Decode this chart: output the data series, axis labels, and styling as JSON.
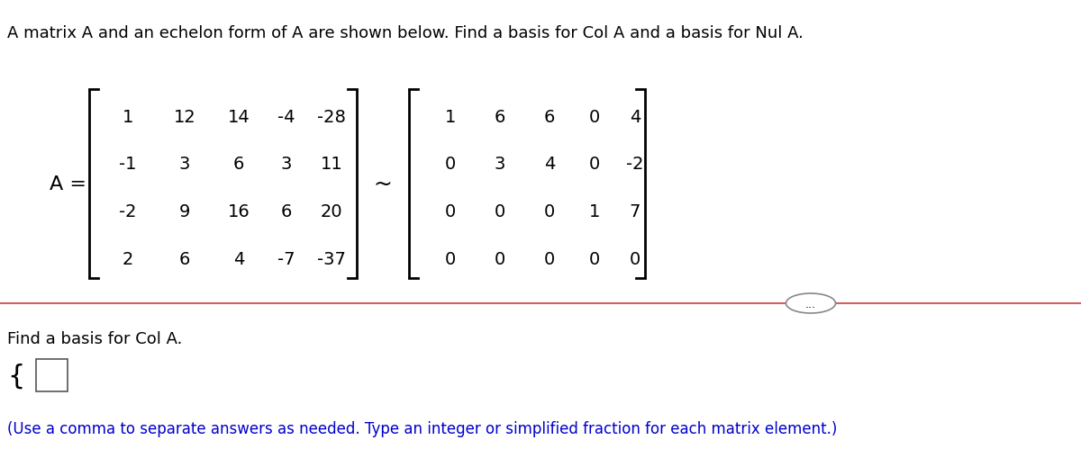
{
  "title": "A matrix A and an echelon form of A are shown below. Find a basis for Col A and a basis for Nul A.",
  "A_label": "A =",
  "tilde": "~",
  "matrix_A": [
    [
      "1",
      "12",
      "14",
      "-4",
      "-28"
    ],
    [
      "-1",
      "3",
      "6",
      "3",
      "11"
    ],
    [
      "-2",
      "9",
      "16",
      "6",
      "20"
    ],
    [
      "2",
      "6",
      "4",
      "-7",
      "-37"
    ]
  ],
  "matrix_E": [
    [
      "1",
      "6",
      "6",
      "0",
      "4"
    ],
    [
      "0",
      "3",
      "4",
      "0",
      "-2"
    ],
    [
      "0",
      "0",
      "0",
      "1",
      "7"
    ],
    [
      "0",
      "0",
      "0",
      "0",
      "0"
    ]
  ],
  "find_basis_text": "Find a basis for Col A.",
  "hint_text": "(Use a comma to separate answers as needed. Type an integer or simplified fraction for each matrix element.)",
  "dots_text": "...",
  "bg_color": "#ffffff",
  "text_color": "#000000",
  "blue_color": "#0000cc",
  "divider_color": "#cc4444",
  "title_fontsize": 13,
  "matrix_fontsize": 14,
  "label_fontsize": 14,
  "hint_fontsize": 12,
  "find_fontsize": 13
}
